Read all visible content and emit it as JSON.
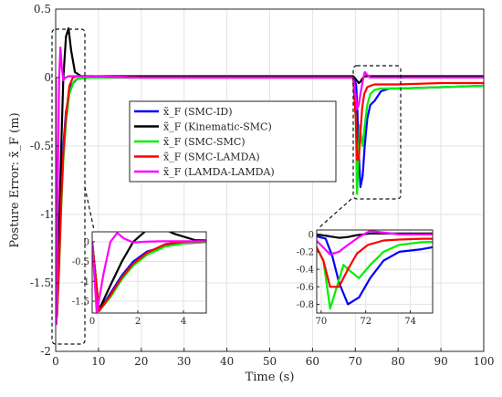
{
  "chart_data": {
    "type": "line",
    "xlabel": "Time (s)",
    "ylabel": "Posture Error: x̃_F (m)",
    "xlim": [
      0,
      100
    ],
    "ylim": [
      -2,
      0.5
    ],
    "xticks": [
      0,
      10,
      20,
      30,
      40,
      50,
      60,
      70,
      80,
      90,
      100
    ],
    "yticks": [
      0.5,
      0,
      -0.5,
      -1,
      -1.5,
      -2
    ],
    "ytick_labels": [
      "0.5",
      "0",
      "-0.5",
      "-1",
      "-1.5",
      "-2"
    ],
    "grid": true,
    "legend_position": "center",
    "series": [
      {
        "name": "x̃_F (SMC-ID)",
        "color": "#0000ff",
        "x": [
          0,
          0.3,
          0.8,
          1.3,
          1.8,
          2.4,
          3.5,
          5,
          8,
          20,
          40,
          60,
          69.5,
          70.2,
          70.5,
          70.8,
          71.2,
          71.7,
          72.2,
          72.8,
          73.5,
          74.5,
          76,
          78,
          80,
          90,
          100
        ],
        "y": [
          0,
          -1.75,
          -1.3,
          -0.85,
          -0.5,
          -0.25,
          -0.06,
          -0.01,
          0,
          0,
          0,
          0,
          0,
          -0.05,
          -0.25,
          -0.55,
          -0.8,
          -0.72,
          -0.5,
          -0.3,
          -0.2,
          -0.17,
          -0.1,
          -0.08,
          -0.08,
          -0.07,
          -0.06
        ]
      },
      {
        "name": "x̃_F (Kinematic-SMC)",
        "color": "#000000",
        "x": [
          0,
          0.3,
          0.8,
          1.3,
          1.8,
          2.4,
          3.0,
          3.6,
          4.5,
          6,
          10,
          30,
          60,
          69.5,
          70.3,
          70.8,
          71.2,
          71.6,
          72.2,
          73,
          74,
          76,
          80,
          100
        ],
        "y": [
          0,
          -1.72,
          -1.1,
          -0.5,
          0.0,
          0.3,
          0.36,
          0.2,
          0.04,
          0.01,
          0.01,
          0.01,
          0.01,
          0.01,
          -0.02,
          -0.04,
          -0.03,
          -0.01,
          0.01,
          0.01,
          0.01,
          0.01,
          0.01,
          0.01
        ]
      },
      {
        "name": "x̃_F (SMC-SMC)",
        "color": "#00ee00",
        "x": [
          0,
          0.3,
          0.8,
          1.3,
          1.8,
          2.4,
          3.2,
          4.2,
          5,
          8,
          20,
          40,
          60,
          69.5,
          70.1,
          70.4,
          70.7,
          71.0,
          71.3,
          71.7,
          72.2,
          72.8,
          73.5,
          74.5,
          76,
          80,
          90,
          100
        ],
        "y": [
          0,
          -1.75,
          -1.4,
          -0.95,
          -0.6,
          -0.33,
          -0.12,
          -0.03,
          -0.01,
          0,
          0,
          0,
          0,
          0,
          -0.3,
          -0.85,
          -0.6,
          -0.35,
          -0.42,
          -0.5,
          -0.35,
          -0.2,
          -0.12,
          -0.09,
          -0.08,
          -0.08,
          -0.07,
          -0.06
        ]
      },
      {
        "name": "x̃_F (SMC-LAMDA)",
        "color": "#ff0000",
        "x": [
          0,
          0.3,
          0.8,
          1.3,
          1.8,
          2.4,
          3.2,
          4.0,
          5,
          8,
          20,
          40,
          60,
          69.5,
          70.1,
          70.4,
          70.8,
          71.2,
          71.6,
          72.1,
          72.8,
          73.5,
          74.5,
          76,
          80,
          90,
          100
        ],
        "y": [
          0,
          -1.75,
          -1.35,
          -0.9,
          -0.55,
          -0.28,
          -0.06,
          0.0,
          0.01,
          0.01,
          0,
          0,
          0,
          0,
          -0.3,
          -0.6,
          -0.6,
          -0.4,
          -0.22,
          -0.12,
          -0.07,
          -0.06,
          -0.05,
          -0.05,
          -0.05,
          -0.04,
          -0.04
        ]
      },
      {
        "name": "x̃_F (LAMDA-LAMDA)",
        "color": "#ff00ff",
        "x": [
          0,
          0.2,
          0.5,
          0.8,
          1.1,
          1.4,
          1.8,
          2.3,
          3,
          4,
          5,
          8,
          20,
          40,
          60,
          69.5,
          70.1,
          70.4,
          70.8,
          71.2,
          71.7,
          72.2,
          72.8,
          73.5,
          74.5,
          76,
          80,
          100
        ],
        "y": [
          0,
          -1.8,
          -0.8,
          0.0,
          0.22,
          0.08,
          -0.02,
          0.0,
          0.01,
          0.01,
          0.01,
          0.01,
          0,
          0,
          0,
          0,
          -0.15,
          -0.23,
          -0.2,
          -0.12,
          -0.03,
          0.04,
          0.02,
          0.0,
          0.0,
          0.0,
          0.0,
          0.0
        ]
      }
    ],
    "insets": [
      {
        "xlim": [
          0,
          5
        ],
        "ylim": [
          -1.8,
          0.25
        ],
        "xticks": [
          0,
          2,
          4
        ],
        "yticks": [
          0,
          -0.5,
          -1,
          -1.5
        ]
      },
      {
        "xlim": [
          69.8,
          75
        ],
        "ylim": [
          -0.9,
          0.05
        ],
        "xticks": [
          70,
          72,
          74
        ],
        "yticks": [
          0,
          -0.2,
          -0.4,
          -0.6,
          -0.8
        ]
      }
    ]
  }
}
